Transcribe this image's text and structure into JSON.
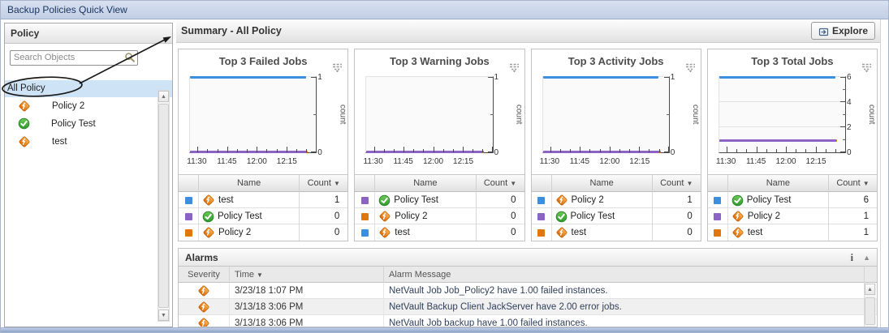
{
  "window": {
    "title": "Backup Policies Quick View"
  },
  "sidebar": {
    "header": "Policy",
    "search_placeholder": "Search Objects",
    "root_item": "All Policy",
    "items": [
      {
        "label": "Policy 2",
        "icon": "policy-warning"
      },
      {
        "label": "Policy Test",
        "icon": "policy-ok"
      },
      {
        "label": "test",
        "icon": "policy-warning"
      }
    ]
  },
  "main": {
    "header": "Summary - All Policy",
    "explore_label": "Explore"
  },
  "colors": {
    "series_blue": "#3c8fdf",
    "series_purple": "#8a63c4",
    "series_orange": "#e0760c",
    "selection_blue": "#cfe3f7",
    "titlebar_blue": "#c6d2e8"
  },
  "chart_data": [
    {
      "type": "line",
      "title": "Top 3 Failed Jobs",
      "x_ticks": [
        "11:30",
        "11:45",
        "12:00",
        "12:15"
      ],
      "ylabel": "count",
      "ylim": [
        0,
        1
      ],
      "y_major_ticks": [
        0,
        1
      ],
      "y_minor_ticks": [
        0.5
      ],
      "series": [
        {
          "name": "test",
          "color": "#3c8fdf",
          "value": 1
        },
        {
          "name": "Policy Test",
          "color": "#8a63c4",
          "value": 0
        },
        {
          "name": "Policy 2",
          "color": "#e0760c",
          "value": 0
        }
      ],
      "legend_table": {
        "columns": [
          "Name",
          "Count"
        ],
        "rows": [
          {
            "color": "#3c8fdf",
            "icon": "policy-warning",
            "name": "test",
            "count": "1"
          },
          {
            "color": "#8a63c4",
            "icon": "policy-ok",
            "name": "Policy Test",
            "count": "0"
          },
          {
            "color": "#e0760c",
            "icon": "policy-warning",
            "name": "Policy 2",
            "count": "0"
          }
        ]
      }
    },
    {
      "type": "line",
      "title": "Top 3 Warning Jobs",
      "x_ticks": [
        "11:30",
        "11:45",
        "12:00",
        "12:15"
      ],
      "ylabel": "count",
      "ylim": [
        0,
        1
      ],
      "y_major_ticks": [
        0,
        1
      ],
      "y_minor_ticks": [
        0.5
      ],
      "series": [
        {
          "name": "Policy Test",
          "color": "#8a63c4",
          "value": 0
        },
        {
          "name": "Policy 2",
          "color": "#e0760c",
          "value": 0
        },
        {
          "name": "test",
          "color": "#3c8fdf",
          "value": 0
        }
      ],
      "legend_table": {
        "columns": [
          "Name",
          "Count"
        ],
        "rows": [
          {
            "color": "#8a63c4",
            "icon": "policy-ok",
            "name": "Policy Test",
            "count": "0"
          },
          {
            "color": "#e0760c",
            "icon": "policy-warning",
            "name": "Policy 2",
            "count": "0"
          },
          {
            "color": "#3c8fdf",
            "icon": "policy-warning",
            "name": "test",
            "count": "0"
          }
        ]
      }
    },
    {
      "type": "line",
      "title": "Top 3 Activity Jobs",
      "x_ticks": [
        "11:30",
        "11:45",
        "12:00",
        "12:15"
      ],
      "ylabel": "count",
      "ylim": [
        0,
        1
      ],
      "y_major_ticks": [
        0,
        1
      ],
      "y_minor_ticks": [
        0.5
      ],
      "series": [
        {
          "name": "Policy 2",
          "color": "#3c8fdf",
          "value": 1
        },
        {
          "name": "Policy Test",
          "color": "#8a63c4",
          "value": 0
        },
        {
          "name": "test",
          "color": "#e0760c",
          "value": 0
        }
      ],
      "legend_table": {
        "columns": [
          "Name",
          "Count"
        ],
        "rows": [
          {
            "color": "#3c8fdf",
            "icon": "policy-warning",
            "name": "Policy 2",
            "count": "1"
          },
          {
            "color": "#8a63c4",
            "icon": "policy-ok",
            "name": "Policy Test",
            "count": "0"
          },
          {
            "color": "#e0760c",
            "icon": "policy-warning",
            "name": "test",
            "count": "0"
          }
        ]
      }
    },
    {
      "type": "line",
      "title": "Top 3 Total Jobs",
      "x_ticks": [
        "11:30",
        "11:45",
        "12:00",
        "12:15"
      ],
      "ylabel": "count",
      "ylim": [
        0,
        6
      ],
      "y_major_ticks": [
        0,
        2,
        4,
        6
      ],
      "y_minor_ticks": [
        1,
        3,
        5
      ],
      "series": [
        {
          "name": "Policy Test",
          "color": "#3c8fdf",
          "value": 6
        },
        {
          "name": "Policy 2",
          "color": "#8a63c4",
          "value": 1
        },
        {
          "name": "test",
          "color": "#e0760c",
          "value": 1
        }
      ],
      "legend_table": {
        "columns": [
          "Name",
          "Count"
        ],
        "rows": [
          {
            "color": "#3c8fdf",
            "icon": "policy-ok",
            "name": "Policy Test",
            "count": "6"
          },
          {
            "color": "#8a63c4",
            "icon": "policy-warning",
            "name": "Policy 2",
            "count": "1"
          },
          {
            "color": "#e0760c",
            "icon": "policy-warning",
            "name": "test",
            "count": "1"
          }
        ]
      }
    }
  ],
  "alarms": {
    "header": "Alarms",
    "columns": [
      "Severity",
      "Time",
      "Alarm Message"
    ],
    "sorted_column": "Time",
    "rows": [
      {
        "severity": "warning",
        "time": "3/23/18 1:07 PM",
        "message": "NetVault Job Job_Policy2 have 1.00 failed instances."
      },
      {
        "severity": "warning",
        "time": "3/13/18 3:06 PM",
        "message": "NetVault Backup Client JackServer have 2.00 error jobs."
      },
      {
        "severity": "warning",
        "time": "3/13/18 3:06 PM",
        "message": "NetVault Job backup have 1.00 failed instances."
      }
    ]
  }
}
